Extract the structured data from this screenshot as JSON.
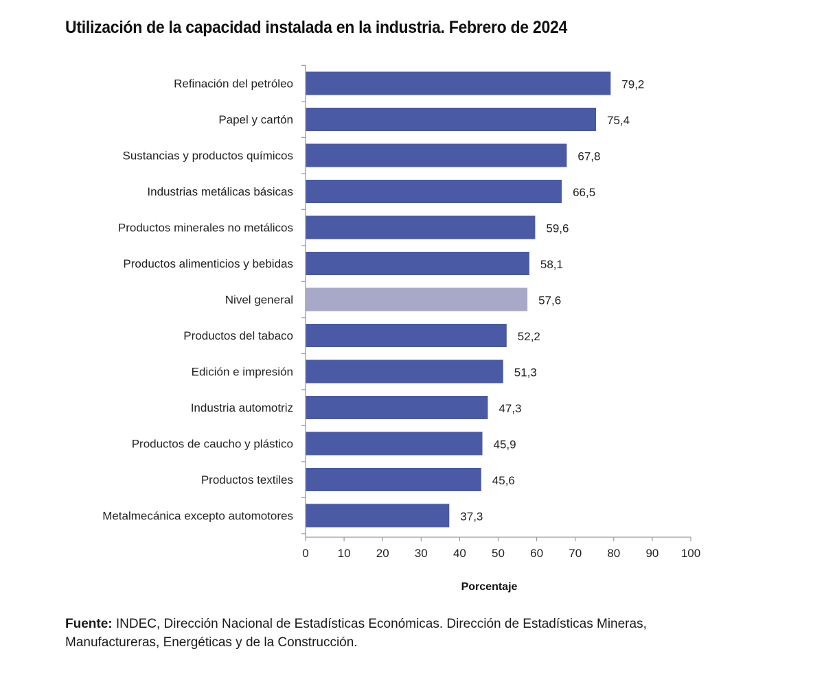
{
  "chart_data": {
    "type": "bar",
    "orientation": "horizontal",
    "title": "Utilización de la capacidad instalada en la industria. Febrero de 2024",
    "xlabel": "Porcentaje",
    "ylabel": "",
    "xlim": [
      0,
      100
    ],
    "x_ticks": [
      "0",
      "10",
      "20",
      "30",
      "40",
      "50",
      "60",
      "70",
      "80",
      "90",
      "100"
    ],
    "categories": [
      "Refinación del petróleo",
      "Papel y cartón",
      "Sustancias y productos químicos",
      "Industrias metálicas básicas",
      "Productos minerales no metálicos",
      "Productos alimenticios y bebidas",
      "Nivel general",
      "Productos del tabaco",
      "Edición e impresión",
      "Industria automotriz",
      "Productos de caucho y plástico",
      "Productos textiles",
      "Metalmecánica excepto automotores"
    ],
    "values": [
      79.2,
      75.4,
      67.8,
      66.5,
      59.6,
      58.1,
      57.6,
      52.2,
      51.3,
      47.3,
      45.9,
      45.6,
      37.3
    ],
    "value_labels": [
      "79,2",
      "75,4",
      "67,8",
      "66,5",
      "59,6",
      "58,1",
      "57,6",
      "52,2",
      "51,3",
      "47,3",
      "45,9",
      "45,6",
      "37,3"
    ],
    "highlight_category": "Nivel general",
    "colors": {
      "bar": "#4a5aa5",
      "highlight": "#a8a9c8",
      "axis": "#9a9a9a"
    },
    "grid": false,
    "legend": "none"
  },
  "source": {
    "label": "Fuente:",
    "text": " INDEC, Dirección Nacional de Estadísticas Económicas. Dirección de Estadísticas Mineras, Manufactureras, Energéticas y de la Construcción."
  }
}
